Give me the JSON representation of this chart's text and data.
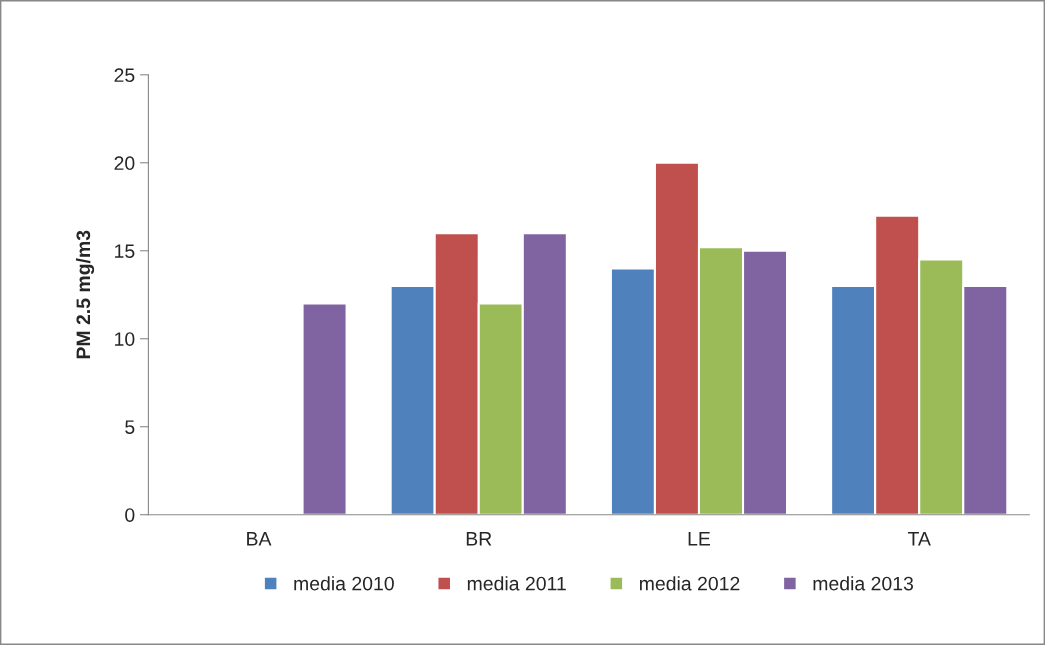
{
  "chart_data": {
    "type": "bar",
    "ylabel": "PM 2.5 mg/m3",
    "categories": [
      "BA",
      "BR",
      "LE",
      "TA"
    ],
    "series": [
      {
        "name": "media 2010",
        "color": "#4f81bd",
        "values": [
          null,
          13,
          14,
          13
        ]
      },
      {
        "name": "media 2011",
        "color": "#c0504d",
        "values": [
          null,
          16,
          20,
          17
        ]
      },
      {
        "name": "media 2012",
        "color": "#9bbb59",
        "values": [
          null,
          12,
          15.2,
          14.5
        ]
      },
      {
        "name": "media 2013",
        "color": "#8064a2",
        "values": [
          12,
          16,
          15,
          13
        ]
      }
    ],
    "ylim": [
      0,
      25
    ],
    "yticks": [
      0,
      5,
      10,
      15,
      20,
      25
    ],
    "grid": false,
    "legend": "bottom"
  }
}
